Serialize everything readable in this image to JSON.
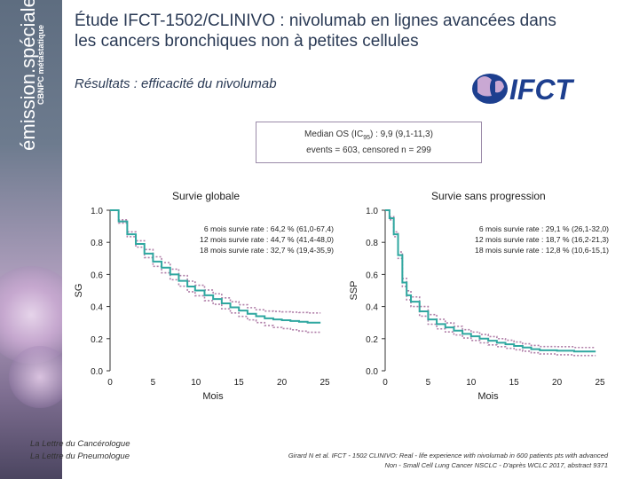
{
  "sidebar": {
    "brand": "émission.spéciale",
    "subtitle": "CBNPC métastatique"
  },
  "header": {
    "title": "Étude IFCT-1502/CLINIVO : nivolumab en lignes avancées dans les cancers bronchiques non à petites cellules",
    "subtitle": "Résultats : efficacité du nivolumab",
    "logo_text": "IFCT"
  },
  "median_box": {
    "line1_prefix": "Median OS (IC",
    "line1_sub": "95",
    "line1_suffix": ") : 9,9 (9,1-11,3)",
    "line2": "events = 603, censored n = 299"
  },
  "chart_data": [
    {
      "type": "line",
      "title": "Survie globale",
      "ylabel": "SG",
      "xlabel": "Mois",
      "x_ticks": [
        "0",
        "5",
        "10",
        "15",
        "20",
        "25"
      ],
      "y_ticks": [
        "0.0",
        "0.2",
        "0.4",
        "0.6",
        "0.8",
        "1.0"
      ],
      "xlim": [
        0,
        25
      ],
      "ylim": [
        0,
        1
      ],
      "annotations": [
        "6 mois survie rate : 64,2 % (61,0-67,4)",
        "12 mois survie rate : 44,7 % (41,4-48,0)",
        "18 mois survie rate : 32,7 % (19,4-35,9)"
      ],
      "series": [
        {
          "x": [
            0,
            1,
            2,
            3,
            4,
            5,
            6,
            7,
            8,
            9,
            9.9,
            11,
            12,
            13,
            14,
            15,
            16,
            17,
            18,
            19,
            20,
            21,
            22,
            23,
            24.5
          ],
          "y": [
            1.0,
            0.93,
            0.85,
            0.79,
            0.73,
            0.68,
            0.642,
            0.6,
            0.56,
            0.525,
            0.5,
            0.47,
            0.447,
            0.42,
            0.395,
            0.375,
            0.355,
            0.34,
            0.327,
            0.32,
            0.315,
            0.31,
            0.305,
            0.3,
            0.3
          ]
        }
      ],
      "ci_width": [
        0.0,
        0.01,
        0.015,
        0.02,
        0.025,
        0.03,
        0.032,
        0.033,
        0.033,
        0.033,
        0.033,
        0.033,
        0.033,
        0.034,
        0.035,
        0.036,
        0.038,
        0.04,
        0.045,
        0.05,
        0.052,
        0.055,
        0.058,
        0.06,
        0.06
      ],
      "colors": {
        "line": "#2fa7a0",
        "ci": "#b07fa8"
      }
    },
    {
      "type": "line",
      "title": "Survie sans progression",
      "ylabel": "SSP",
      "xlabel": "Mois",
      "x_ticks": [
        "0",
        "5",
        "10",
        "15",
        "20",
        "25"
      ],
      "y_ticks": [
        "0.0",
        "0.2",
        "0.4",
        "0.6",
        "0.8",
        "1.0"
      ],
      "xlim": [
        0,
        25
      ],
      "ylim": [
        0,
        1
      ],
      "annotations": [
        "6 mois survie rate : 29,1 % (26,1-32,0)",
        "12 mois survie rate : 18,7 % (16,2-21,3)",
        "18 mois survie rate : 12,8 % (10,6-15,1)"
      ],
      "series": [
        {
          "x": [
            0,
            0.5,
            1,
            1.5,
            2,
            2.5,
            3,
            4,
            5,
            6,
            7,
            8,
            9,
            10,
            11,
            12,
            13,
            14,
            15,
            16,
            17,
            18,
            20,
            22,
            24.5
          ],
          "y": [
            1.0,
            0.95,
            0.85,
            0.72,
            0.55,
            0.47,
            0.43,
            0.37,
            0.32,
            0.291,
            0.27,
            0.25,
            0.23,
            0.215,
            0.2,
            0.187,
            0.175,
            0.165,
            0.155,
            0.145,
            0.135,
            0.128,
            0.125,
            0.12,
            0.12
          ]
        }
      ],
      "ci_width": [
        0.0,
        0.01,
        0.015,
        0.02,
        0.025,
        0.028,
        0.03,
        0.03,
        0.03,
        0.03,
        0.028,
        0.027,
        0.026,
        0.026,
        0.026,
        0.026,
        0.025,
        0.025,
        0.024,
        0.023,
        0.023,
        0.023,
        0.025,
        0.025,
        0.025
      ],
      "colors": {
        "line": "#2fa7a0",
        "ci": "#b07fa8"
      }
    }
  ],
  "footer": {
    "left_line1": "La Lettre du Cancérologue",
    "left_line2": "La Lettre du Pneumologue",
    "right_line1": "Girard N et al. IFCT - 1502 CLINIVO: Real - life experience with nivolumab in 600 patients pts with advanced",
    "right_line2": "Non - Small Cell Lung Cancer NSCLC - D'après WCLC 2017, abstract 9371"
  }
}
